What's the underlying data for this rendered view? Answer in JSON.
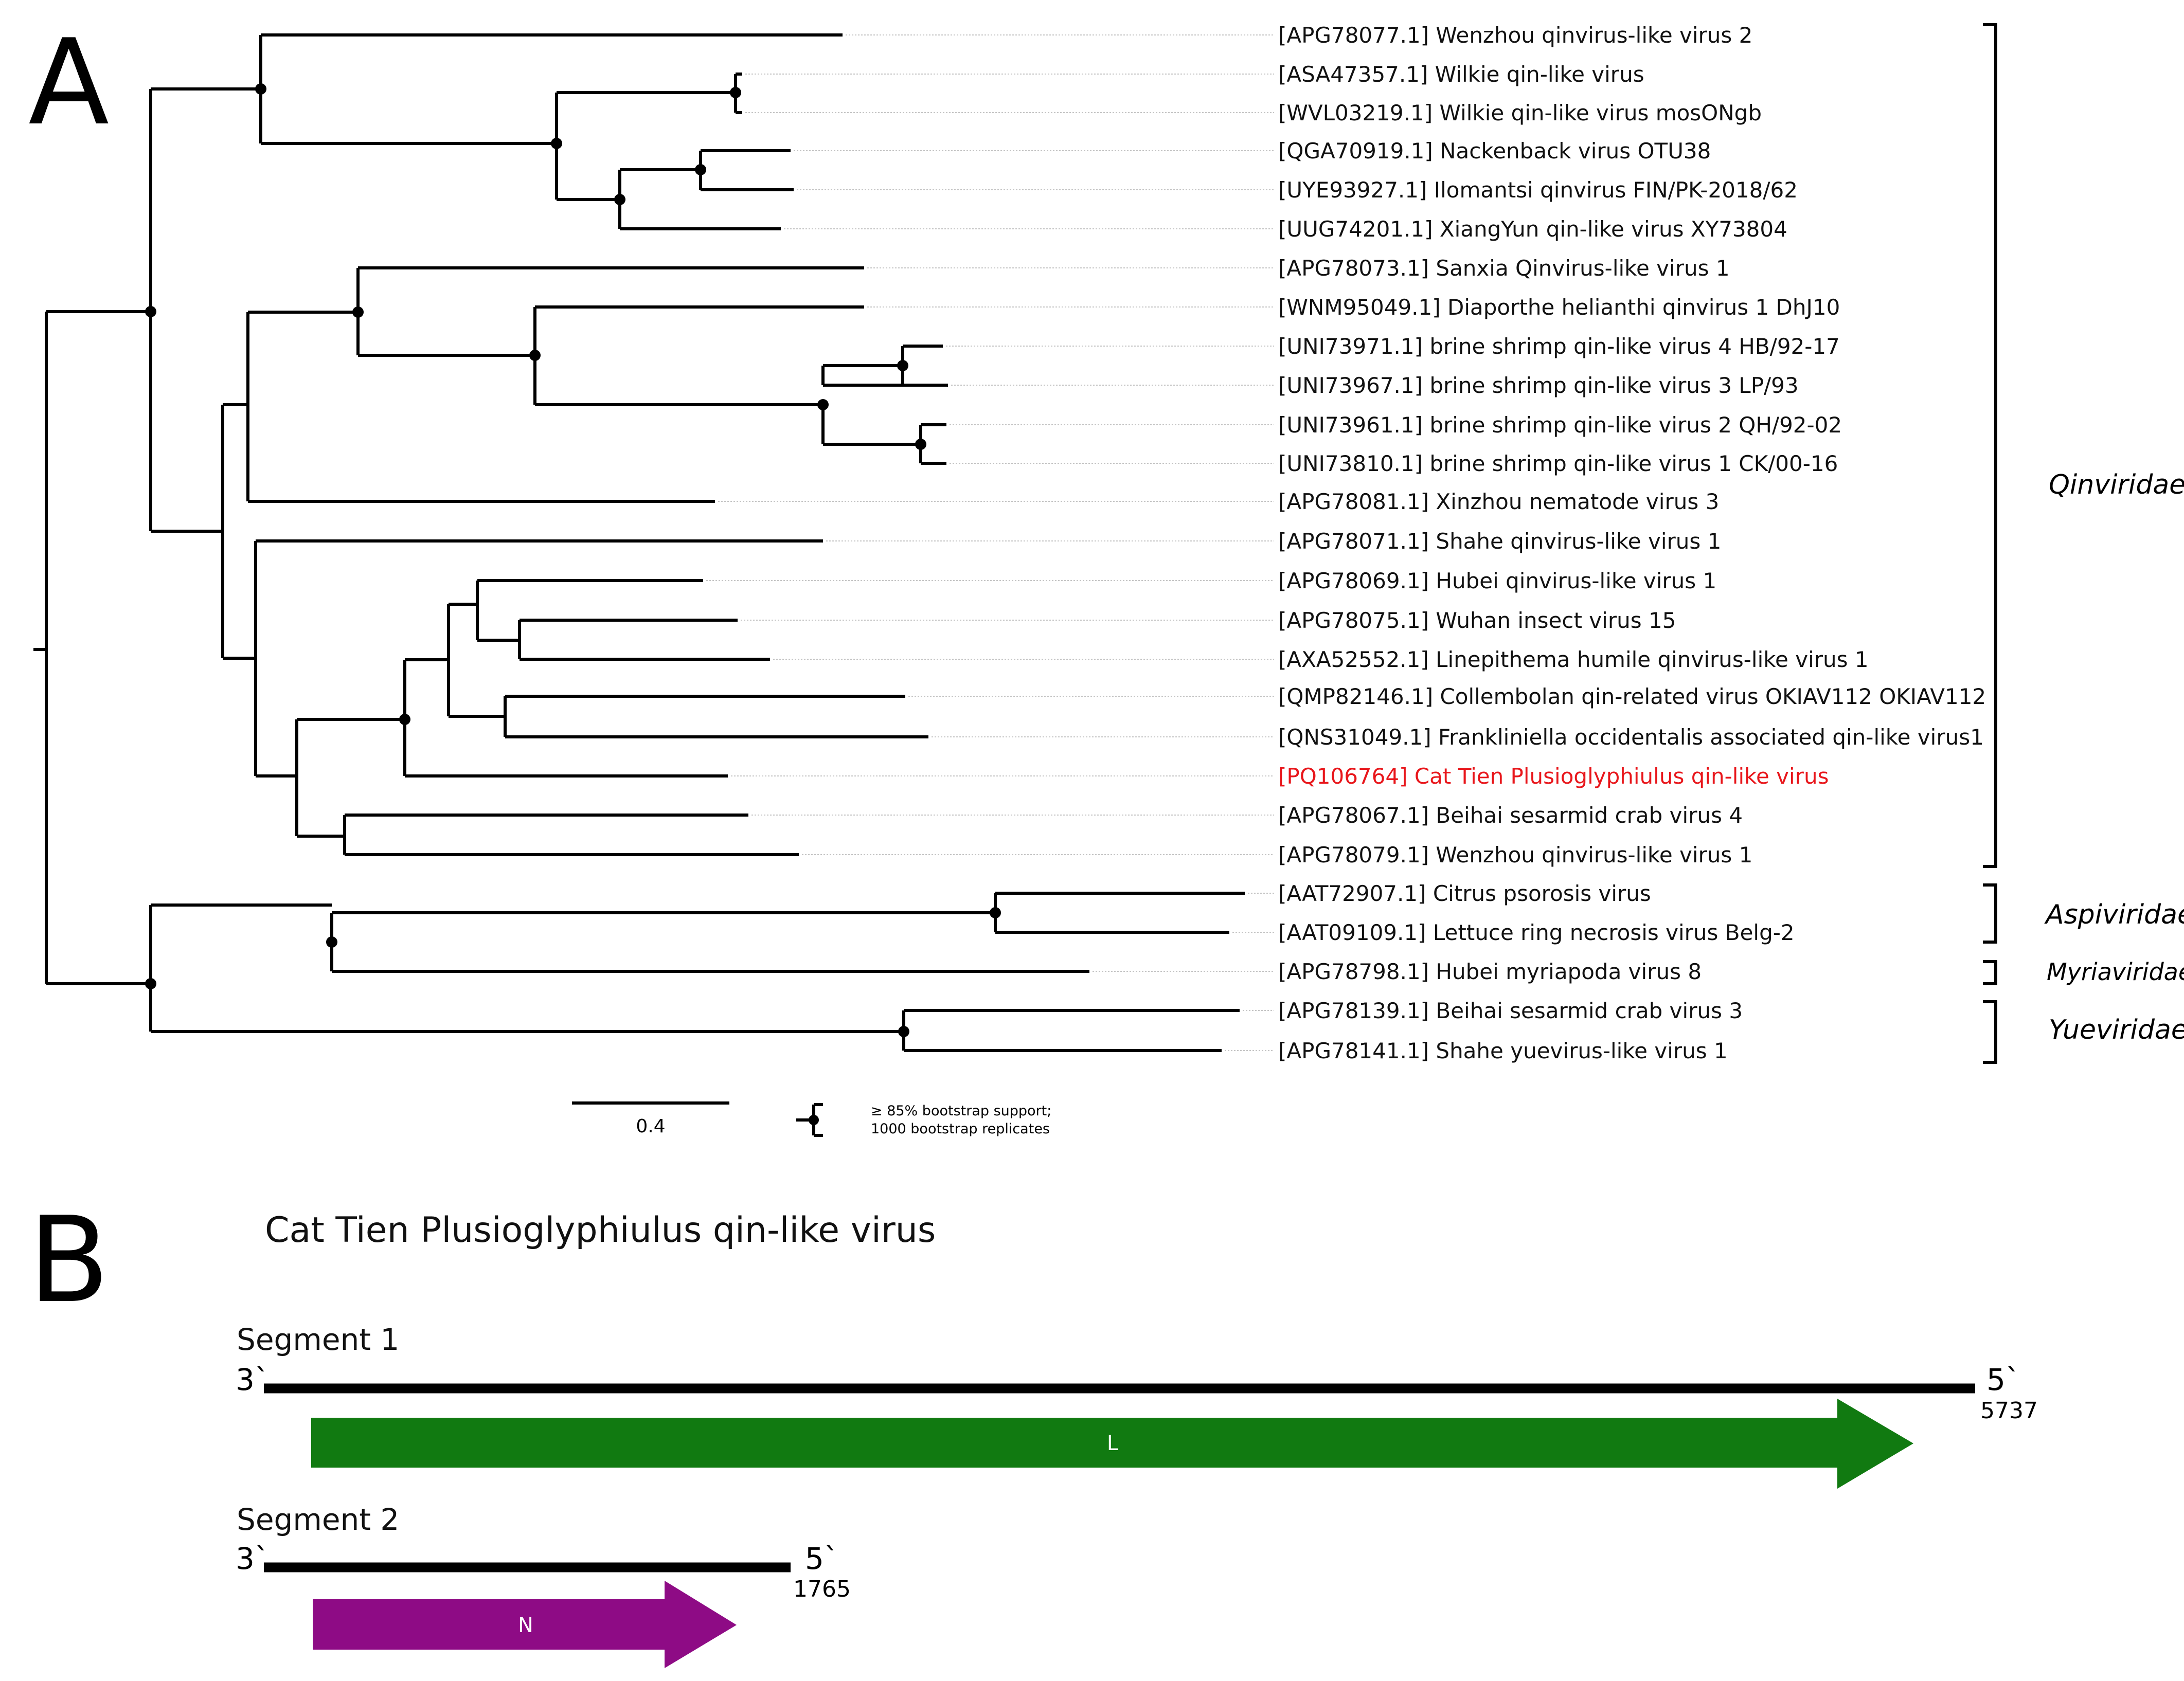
{
  "panel_a": {
    "letter": "A",
    "leaves": [
      "[APG78077.1] Wenzhou qinvirus-like virus 2",
      "[ASA47357.1] Wilkie qin-like virus",
      "[WVL03219.1] Wilkie qin-like virus mosONgb",
      "[QGA70919.1] Nackenback virus OTU38",
      "[UYE93927.1] Ilomantsi qinvirus FIN/PK-2018/62",
      "[UUG74201.1] XiangYun qin-like virus XY73804",
      "[APG78073.1] Sanxia Qinvirus-like virus 1",
      "[WNM95049.1] Diaporthe helianthi qinvirus 1 DhJ10",
      "[UNI73971.1] brine shrimp qin-like virus 4 HB/92-17",
      "[UNI73967.1] brine shrimp qin-like virus 3 LP/93",
      "[UNI73961.1] brine shrimp qin-like virus 2 QH/92-02",
      "[UNI73810.1] brine shrimp qin-like virus 1 CK/00-16",
      "[APG78081.1] Xinzhou nematode virus 3",
      "[APG78071.1] Shahe qinvirus-like virus 1",
      "[APG78069.1] Hubei qinvirus-like virus 1",
      "[APG78075.1] Wuhan insect virus 15",
      "[AXA52552.1] Linepithema humile qinvirus-like virus 1",
      "[QMP82146.1] Collembolan qin-related virus OKIAV112 OKIAV112",
      "[QNS31049.1] Frankliniella occidentalis associated qin-like virus1",
      "[PQ106764] Cat Tien Plusioglyphiulus qin-like virus",
      "[APG78067.1] Beihai sesarmid crab virus 4",
      "[APG78079.1] Wenzhou qinvirus-like virus 1",
      "[AAT72907.1] Citrus psorosis virus",
      "[AAT09109.1] Lettuce ring necrosis virus Belg-2",
      "[APG78798.1] Hubei myriapoda virus 8",
      "[APG78139.1] Beihai sesarmid crab virus 3",
      "[APG78141.1] Shahe yuevirus-like virus 1"
    ],
    "highlight_color": "#e8161b",
    "families": [
      "Qinviridae",
      "Aspiviridae",
      "Myriaviridae",
      "Yueviridae"
    ],
    "scale_bar": "0.4",
    "legend": {
      "line1": "≥ 85% bootstrap support;",
      "line2": "1000 bootstrap replicates"
    }
  },
  "panel_b": {
    "letter": "B",
    "title": "Cat Tien Plusioglyphiulus qin-like virus",
    "segments": [
      {
        "label": "Segment 1",
        "start_end": "3`",
        "stop_end": "5`",
        "length": "5737",
        "gene": "L",
        "gene_color": "#117a11"
      },
      {
        "label": "Segment 2",
        "start_end": "3`",
        "stop_end": "5`",
        "length": "1765",
        "gene": "N",
        "gene_color": "#8e0b85"
      }
    ]
  }
}
